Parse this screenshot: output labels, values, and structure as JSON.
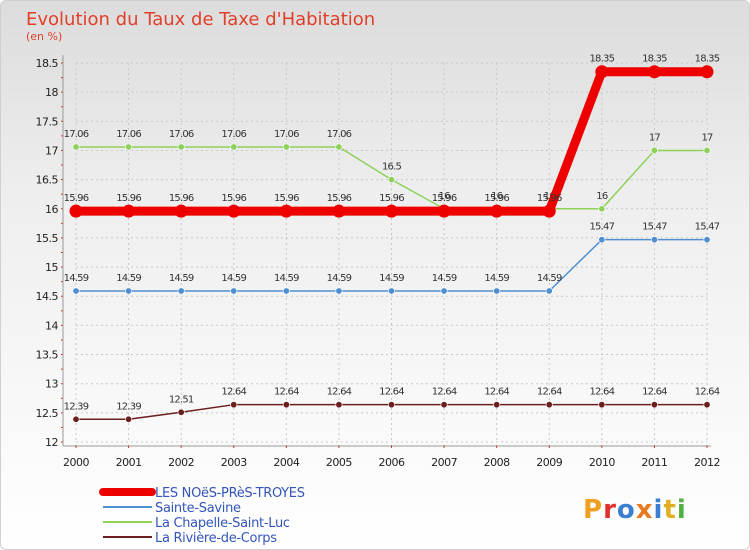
{
  "title": "Evolution du Taux de Taxe d'Habitation",
  "unit_label": "(en %)",
  "logo": "Proxiti",
  "chart_data": {
    "type": "line",
    "title": "Evolution du Taux de Taxe d'Habitation",
    "ylabel": "(en %)",
    "xlabel": "",
    "x": [
      "2000",
      "2001",
      "2002",
      "2003",
      "2004",
      "2005",
      "2006",
      "2007",
      "2008",
      "2009",
      "2010",
      "2011",
      "2012"
    ],
    "ylim": [
      12,
      18.5
    ],
    "yticks": [
      12,
      12.5,
      13,
      13.5,
      14,
      14.5,
      15,
      15.5,
      16,
      16.5,
      17,
      17.5,
      18,
      18.5
    ],
    "grid": true,
    "legend_position": "bottom-left",
    "series": [
      {
        "name": "La Rivière-de-Corps",
        "color": "#6b1e1e",
        "values": [
          12.39,
          12.39,
          12.51,
          12.64,
          12.64,
          12.64,
          12.64,
          12.64,
          12.64,
          12.64,
          12.64,
          12.64,
          12.64
        ],
        "labels": [
          "12.39",
          "12.39",
          "12.51",
          "12.64",
          "12.64",
          "12.64",
          "12.64",
          "12.64",
          "12.64",
          "12.64",
          "12.64",
          "12.64",
          "12.64"
        ]
      },
      {
        "name": "Sainte-Savine",
        "color": "#4f8fd0",
        "values": [
          14.59,
          14.59,
          14.59,
          14.59,
          14.59,
          14.59,
          14.59,
          14.59,
          14.59,
          14.59,
          15.47,
          15.47,
          15.47
        ],
        "labels": [
          "14.59",
          "14.59",
          "14.59",
          "14.59",
          "14.59",
          "14.59",
          "14.59",
          "14.59",
          "14.59",
          "14.59",
          "15.47",
          "15.47",
          "15.47"
        ]
      },
      {
        "name": "La Chapelle-Saint-Luc",
        "color": "#8ed15a",
        "values": [
          17.06,
          17.06,
          17.06,
          17.06,
          17.06,
          17.06,
          16.5,
          16,
          16,
          16,
          16,
          17,
          17
        ],
        "labels": [
          "17.06",
          "17.06",
          "17.06",
          "17.06",
          "17.06",
          "17.06",
          "16.5",
          "16",
          "16",
          "16",
          "16",
          "17",
          "17"
        ]
      },
      {
        "name": "LES NOëS-PRèS-TROYES",
        "color": "#ee0000",
        "values": [
          15.96,
          15.96,
          15.96,
          15.96,
          15.96,
          15.96,
          15.96,
          15.96,
          15.96,
          15.96,
          18.35,
          18.35,
          18.35
        ],
        "labels": [
          "15.96",
          "15.96",
          "15.96",
          "15.96",
          "15.96",
          "15.96",
          "15.96",
          "15.96",
          "15.96",
          "15.96",
          "18.35",
          "18.35",
          "18.35"
        ]
      }
    ],
    "legend": [
      "LES NOëS-PRèS-TROYES",
      "Sainte-Savine",
      "La Chapelle-Saint-Luc",
      "La Rivière-de-Corps"
    ]
  }
}
